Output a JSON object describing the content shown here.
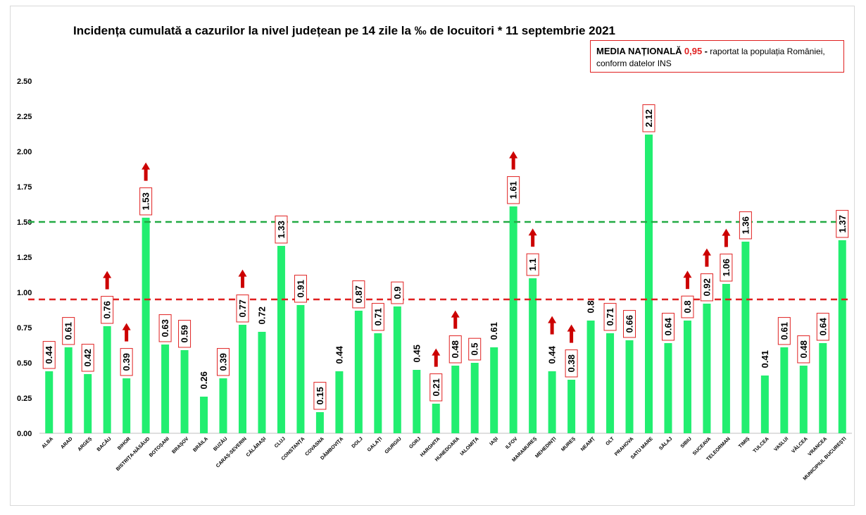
{
  "title": "Incidența cumulată a cazurilor la nivel județean pe 14 zile la ‰ de locuitori * 11 septembrie 2021",
  "note": {
    "label": "MEDIA NAȚIONALĂ",
    "value": "0,95",
    "dash": "-",
    "text1": "raportat la populația României,",
    "text2": "conform datelor INS"
  },
  "colors": {
    "bar": "#22ee70",
    "threshold_high": "#22aa44",
    "threshold_mean": "#e02020",
    "arrow": "#cc0000"
  },
  "chart_data": {
    "type": "bar",
    "title": "Incidența cumulată a cazurilor la nivel județean pe 14 zile la ‰ de locuitori * 11 septembrie 2021",
    "categories": [
      "ALBA",
      "ARAD",
      "ARGEȘ",
      "BACĂU",
      "BIHOR",
      "BISTRIȚA-NĂSĂUD",
      "BOTOȘANI",
      "BRAȘOV",
      "BRĂILA",
      "BUZĂU",
      "CARAȘ-SEVERIN",
      "CĂLĂRAȘI",
      "CLUJ",
      "CONSTANȚA",
      "COVASNA",
      "DÂMBOVIȚA",
      "DOLJ",
      "GALAȚI",
      "GIURGIU",
      "GORJ",
      "HARGHITA",
      "HUNEDOARA",
      "IALOMIȚA",
      "IAȘI",
      "ILFOV",
      "MARAMUREȘ",
      "MEHEDINȚI",
      "MUREȘ",
      "NEAMȚ",
      "OLT",
      "PRAHOVA",
      "SATU MARE",
      "SĂLAJ",
      "SIBIU",
      "SUCEAVA",
      "TELEORMAN",
      "TIMIȘ",
      "TULCEA",
      "VASLUI",
      "VÂLCEA",
      "VRANCEA",
      "MUNICIPIUL BUCUREȘTI"
    ],
    "values": [
      0.44,
      0.61,
      0.42,
      0.76,
      0.39,
      1.53,
      0.63,
      0.59,
      0.26,
      0.39,
      0.77,
      0.72,
      1.33,
      0.91,
      0.15,
      0.44,
      0.87,
      0.71,
      0.9,
      0.45,
      0.21,
      0.48,
      0.5,
      0.61,
      1.61,
      1.1,
      0.44,
      0.38,
      0.8,
      0.71,
      0.66,
      2.12,
      0.64,
      0.8,
      0.92,
      1.06,
      1.36,
      0.41,
      0.61,
      0.48,
      0.64,
      1.37
    ],
    "value_labels": [
      "0.44",
      "0.61",
      "0.42",
      "0.76",
      "0.39",
      "1.53",
      "0.63",
      "0.59",
      "0.26",
      "0.39",
      "0.77",
      "0.72",
      "1.33",
      "0.91",
      "0.15",
      "0.44",
      "0.87",
      "0.71",
      "0.9",
      "0.45",
      "0.21",
      "0.48",
      "0.5",
      "0.61",
      "1.61",
      "1.1",
      "0.44",
      "0.38",
      "0.8",
      "0.71",
      "0.66",
      "2.12",
      "0.64",
      "0.8",
      "0.92",
      "1.06",
      "1.36",
      "0.41",
      "0.61",
      "0.48",
      "0.64",
      "1.37"
    ],
    "boxed": [
      true,
      true,
      true,
      true,
      true,
      true,
      true,
      true,
      false,
      true,
      true,
      false,
      true,
      true,
      true,
      false,
      true,
      true,
      true,
      false,
      true,
      true,
      true,
      false,
      true,
      true,
      false,
      true,
      false,
      true,
      true,
      true,
      true,
      true,
      true,
      true,
      true,
      false,
      true,
      true,
      true,
      true
    ],
    "increase_arrow": [
      false,
      false,
      false,
      true,
      true,
      true,
      false,
      false,
      false,
      false,
      true,
      false,
      false,
      false,
      false,
      false,
      false,
      false,
      false,
      false,
      true,
      true,
      false,
      false,
      true,
      true,
      true,
      true,
      false,
      false,
      false,
      false,
      false,
      true,
      true,
      true,
      false,
      false,
      false,
      false,
      false,
      false
    ],
    "yticks": [
      "0.00",
      "0.25",
      "0.50",
      "0.75",
      "1.00",
      "1.25",
      "1.50",
      "1.75",
      "2.00",
      "2.25",
      "2.50"
    ],
    "ylim": [
      0,
      2.5
    ],
    "reference_lines": [
      {
        "value": 1.5,
        "style": "dashed-green"
      },
      {
        "value": 0.95,
        "style": "dashed-red"
      }
    ],
    "xlabel": "",
    "ylabel": "",
    "grid": false,
    "legend": "none"
  }
}
